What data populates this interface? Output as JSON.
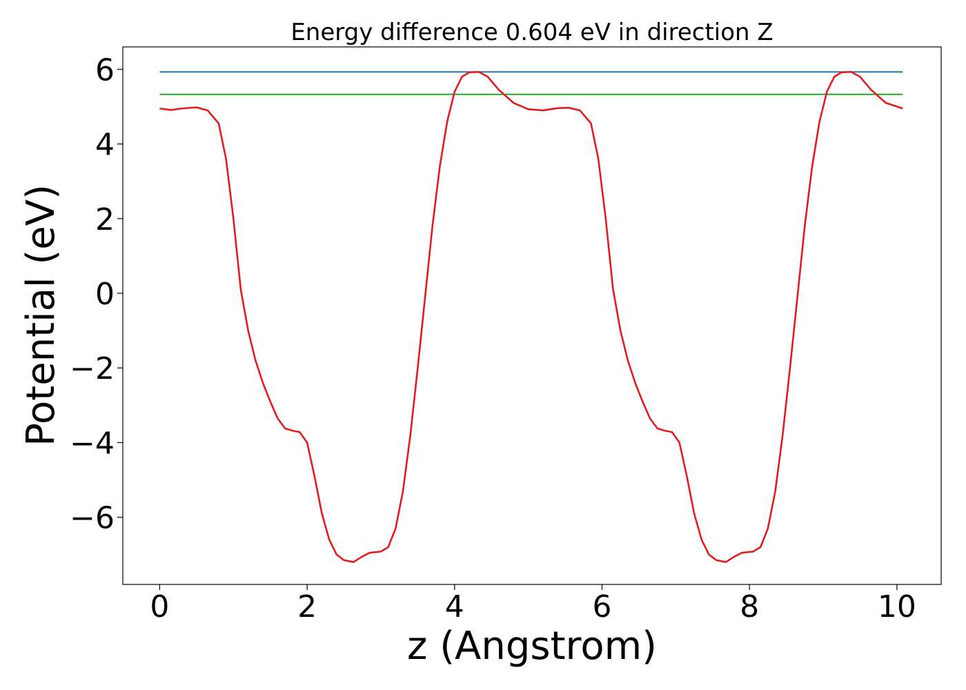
{
  "chart_data": {
    "type": "line",
    "title": "Energy difference 0.604 eV in direction Z",
    "xlabel": "z (Angstrom)",
    "ylabel": "Potential (eV)",
    "xlim": [
      -0.5,
      10.6
    ],
    "ylim": [
      -7.8,
      6.6
    ],
    "xticks": [
      0,
      2,
      4,
      6,
      8,
      10
    ],
    "xtick_labels": [
      "0",
      "2",
      "4",
      "6",
      "8",
      "10"
    ],
    "yticks": [
      -6,
      -4,
      -2,
      0,
      2,
      4,
      6
    ],
    "ytick_labels": [
      "−6",
      "−4",
      "−2",
      "0",
      "2",
      "4",
      "6"
    ],
    "grid": false,
    "legend": "none",
    "series": [
      {
        "color": "#1f77b4",
        "x": [
          0,
          10.08
        ],
        "y": [
          5.93,
          5.93
        ]
      },
      {
        "color": "#2ca02c",
        "x": [
          0,
          10.08
        ],
        "y": [
          5.33,
          5.33
        ]
      },
      {
        "color": "#e41a1c",
        "x": [
          0.0,
          0.15,
          0.3,
          0.5,
          0.65,
          0.8,
          0.9,
          1.0,
          1.1,
          1.2,
          1.3,
          1.4,
          1.5,
          1.6,
          1.7,
          1.8,
          1.9,
          2.0,
          2.1,
          2.2,
          2.3,
          2.4,
          2.5,
          2.63,
          2.75,
          2.85,
          3.0,
          3.1,
          3.2,
          3.3,
          3.4,
          3.5,
          3.6,
          3.7,
          3.8,
          3.9,
          4.0,
          4.1,
          4.2,
          4.33,
          4.45,
          4.6,
          4.8,
          5.0,
          5.2,
          5.4,
          5.55,
          5.7,
          5.85,
          5.95,
          6.05,
          6.15,
          6.25,
          6.35,
          6.45,
          6.55,
          6.65,
          6.75,
          6.85,
          6.95,
          7.05,
          7.15,
          7.25,
          7.35,
          7.45,
          7.55,
          7.68,
          7.8,
          7.9,
          8.05,
          8.15,
          8.25,
          8.35,
          8.45,
          8.55,
          8.65,
          8.75,
          8.85,
          8.95,
          9.05,
          9.15,
          9.25,
          9.38,
          9.5,
          9.65,
          9.85,
          10.08
        ],
        "y": [
          4.95,
          4.91,
          4.95,
          4.98,
          4.9,
          4.55,
          3.6,
          2.0,
          0.1,
          -1.0,
          -1.8,
          -2.4,
          -2.9,
          -3.35,
          -3.62,
          -3.68,
          -3.72,
          -4.0,
          -4.9,
          -5.9,
          -6.6,
          -7.0,
          -7.15,
          -7.2,
          -7.05,
          -6.95,
          -6.92,
          -6.8,
          -6.3,
          -5.3,
          -3.8,
          -2.0,
          -0.1,
          1.8,
          3.4,
          4.6,
          5.4,
          5.8,
          5.92,
          5.93,
          5.8,
          5.45,
          5.1,
          4.93,
          4.9,
          4.96,
          4.97,
          4.9,
          4.55,
          3.6,
          2.0,
          0.1,
          -1.0,
          -1.8,
          -2.4,
          -2.9,
          -3.35,
          -3.62,
          -3.68,
          -3.72,
          -4.0,
          -4.9,
          -5.9,
          -6.6,
          -7.0,
          -7.15,
          -7.2,
          -7.05,
          -6.95,
          -6.92,
          -6.8,
          -6.3,
          -5.3,
          -3.8,
          -2.0,
          -0.1,
          1.8,
          3.4,
          4.6,
          5.4,
          5.8,
          5.92,
          5.93,
          5.8,
          5.45,
          5.1,
          4.95
        ]
      }
    ]
  }
}
